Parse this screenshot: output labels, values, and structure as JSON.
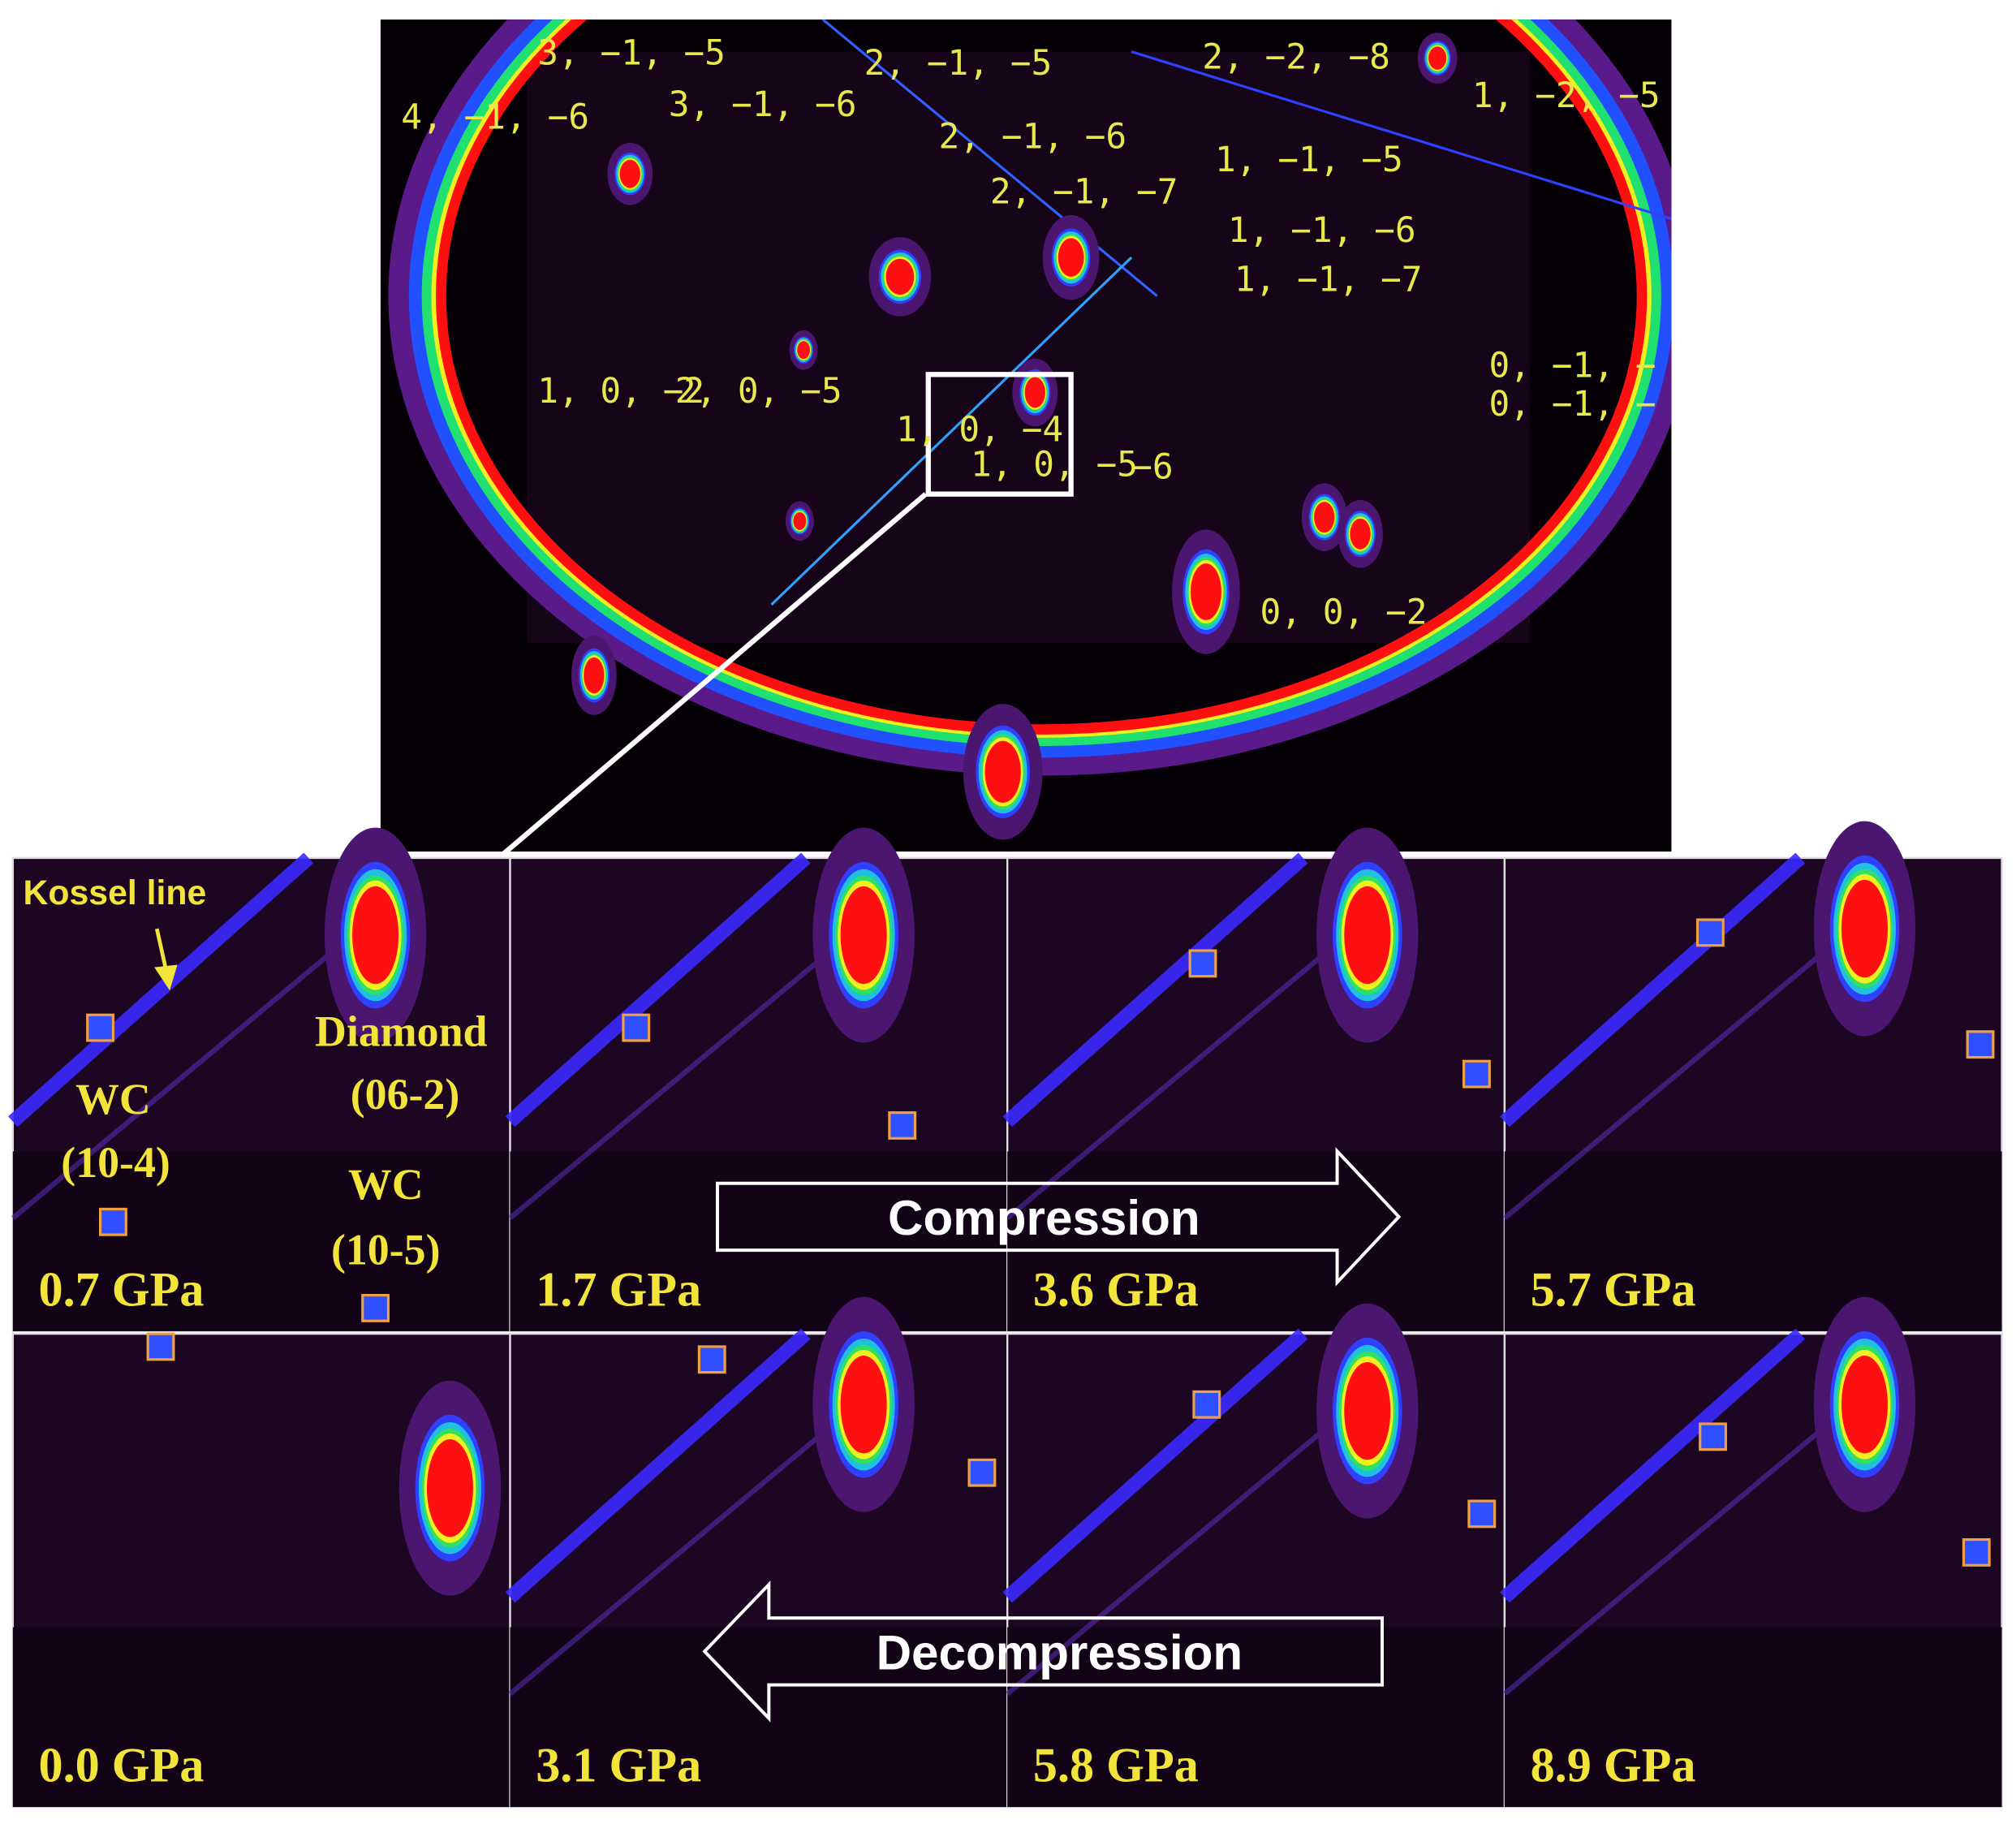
{
  "top_image": {
    "labels": [
      "3, −1, −5",
      "2, −1, −5",
      "2, −2, −8",
      "4, −1, −6",
      "3, −1, −6",
      "1, −2, −5",
      "2, −1, −6",
      "1, −1, −5",
      "2, −1, −7",
      "1, −1, −6",
      "1, −1, −7",
      "0, −1, −",
      "0, −1, −",
      "1, 0, −2",
      "2, 0, −5",
      "1, 0, −4",
      "1, 0, −5",
      "−6",
      "0, 0, −2"
    ]
  },
  "panels": [
    {
      "pressure": "0.7 GPa"
    },
    {
      "pressure": "1.7 GPa"
    },
    {
      "pressure": "3.6 GPa"
    },
    {
      "pressure": "5.7 GPa"
    },
    {
      "pressure": "0.0 GPa"
    },
    {
      "pressure": "3.1 GPa"
    },
    {
      "pressure": "5.8 GPa"
    },
    {
      "pressure": "8.9 GPa"
    }
  ],
  "annotations": {
    "kossel_line": "Kossel line",
    "diamond": "Diamond",
    "diamond_hkl": "(06-2)",
    "wc1": "WC",
    "wc1_hkl": "(10-4)",
    "wc2": "WC",
    "wc2_hkl": "(10-5)"
  },
  "arrows": {
    "compression": "Compression",
    "decompression": "Decompression"
  }
}
